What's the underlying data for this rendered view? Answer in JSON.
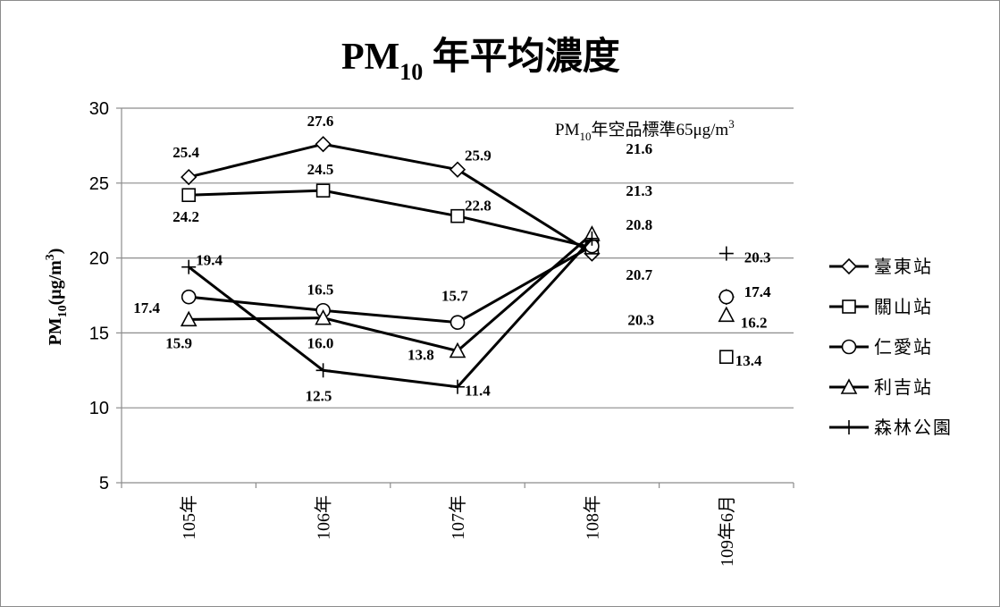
{
  "chart_data": {
    "type": "line",
    "title": {
      "main": "PM",
      "sub": "10",
      "rest": " 年平均濃度"
    },
    "ylabel": {
      "main": "PM",
      "sub": "10",
      "rest": "(μg/m",
      "sup": "3",
      "close": ")"
    },
    "annotation": {
      "main": "PM",
      "sub": "10",
      "rest": "年空品標準65μg/m",
      "sup": "3"
    },
    "categories": [
      "105年",
      "106年",
      "107年",
      "108年",
      "109年6月"
    ],
    "ylim": [
      5,
      30
    ],
    "yticks": [
      "5",
      "10",
      "15",
      "20",
      "25",
      "30"
    ],
    "grid": true,
    "legend_position": "right",
    "series": [
      {
        "name": "臺東站",
        "marker": "diamond",
        "values": [
          25.4,
          27.6,
          25.9,
          20.3,
          17.4
        ],
        "labels": [
          "25.4",
          "27.6",
          "25.9",
          "20.3",
          "17.4"
        ]
      },
      {
        "name": "關山站",
        "marker": "square",
        "values": [
          24.2,
          24.5,
          22.8,
          20.7,
          13.4
        ],
        "labels": [
          "24.2",
          "24.5",
          "22.8",
          "20.7",
          "13.4"
        ]
      },
      {
        "name": "仁愛站",
        "marker": "circle",
        "values": [
          17.4,
          16.5,
          15.7,
          20.8,
          17.4
        ],
        "labels": [
          "17.4",
          "16.5",
          "15.7",
          "20.8",
          "17.4"
        ]
      },
      {
        "name": "利吉站",
        "marker": "triangle",
        "values": [
          15.9,
          16.0,
          13.8,
          21.6,
          16.2
        ],
        "labels": [
          "15.9",
          "16.0",
          "13.8",
          "21.6",
          "16.2"
        ]
      },
      {
        "name": "森林公園",
        "marker": "plus",
        "values": [
          19.4,
          12.5,
          11.4,
          21.3,
          20.3
        ],
        "labels": [
          "19.4",
          "12.5",
          "11.4",
          "21.3",
          "20.3"
        ]
      }
    ]
  }
}
